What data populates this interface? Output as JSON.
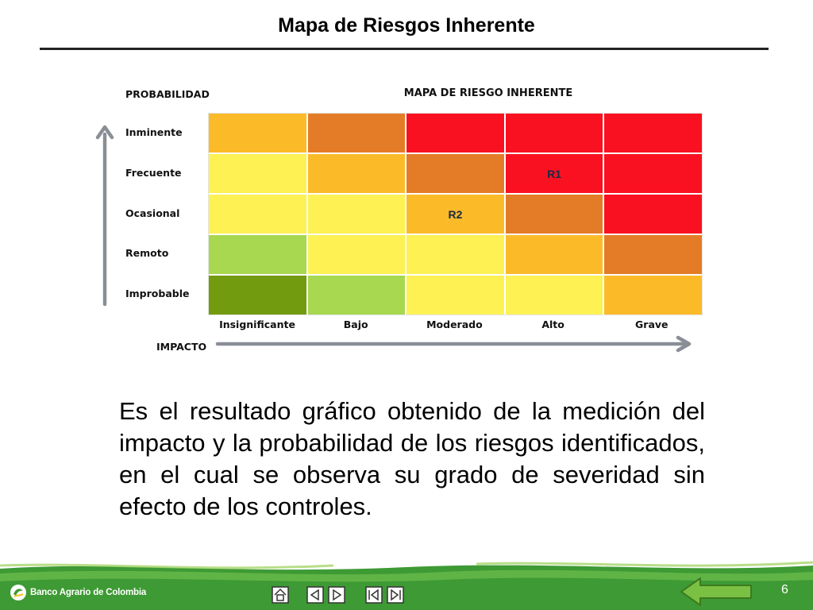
{
  "slide": {
    "title": "Mapa de Riesgos Inherente",
    "page_number": "6"
  },
  "matrix": {
    "title": "MAPA DE RIESGO INHERENTE",
    "y_axis_label": "PROBABILIDAD",
    "x_axis_label": "IMPACTO",
    "probability_levels": [
      "Inminente",
      "Frecuente",
      "Ocasional",
      "Remoto",
      "Improbable"
    ],
    "impact_levels": [
      "Insignificante",
      "Bajo",
      "Moderado",
      "Alto",
      "Grave"
    ],
    "palette": {
      "dark_green": "#739b10",
      "light_green": "#a7d84f",
      "yellow": "#fdf154",
      "amber": "#fbbb29",
      "orange": "#e47c27",
      "red": "#fa1121"
    },
    "rows": [
      {
        "probability": "Inminente",
        "cells": [
          {
            "color": "amber",
            "label": ""
          },
          {
            "color": "orange",
            "label": ""
          },
          {
            "color": "red",
            "label": ""
          },
          {
            "color": "red",
            "label": ""
          },
          {
            "color": "red",
            "label": ""
          }
        ]
      },
      {
        "probability": "Frecuente",
        "cells": [
          {
            "color": "yellow",
            "label": ""
          },
          {
            "color": "amber",
            "label": ""
          },
          {
            "color": "orange",
            "label": ""
          },
          {
            "color": "red",
            "label": "R1"
          },
          {
            "color": "red",
            "label": ""
          }
        ]
      },
      {
        "probability": "Ocasional",
        "cells": [
          {
            "color": "yellow",
            "label": ""
          },
          {
            "color": "yellow",
            "label": ""
          },
          {
            "color": "amber",
            "label": "R2"
          },
          {
            "color": "orange",
            "label": ""
          },
          {
            "color": "red",
            "label": ""
          }
        ]
      },
      {
        "probability": "Remoto",
        "cells": [
          {
            "color": "light_green",
            "label": ""
          },
          {
            "color": "yellow",
            "label": ""
          },
          {
            "color": "yellow",
            "label": ""
          },
          {
            "color": "amber",
            "label": ""
          },
          {
            "color": "orange",
            "label": ""
          }
        ]
      },
      {
        "probability": "Improbable",
        "cells": [
          {
            "color": "dark_green",
            "label": ""
          },
          {
            "color": "light_green",
            "label": ""
          },
          {
            "color": "yellow",
            "label": ""
          },
          {
            "color": "yellow",
            "label": ""
          },
          {
            "color": "amber",
            "label": ""
          }
        ]
      }
    ]
  },
  "description": "Es el resultado gráfico obtenido de la medición del impacto y la probabilidad de los riesgos identificados, en el cual se observa su grado de severidad sin efecto de los controles.",
  "footer": {
    "logo_text": "Banco Agrario de Colombia",
    "band_color": "#3e9a34",
    "nav_icons": [
      "home-icon",
      "previous-slide-icon",
      "next-slide-icon",
      "first-slide-icon",
      "last-slide-icon"
    ],
    "back_icon": "back-arrow-icon"
  }
}
